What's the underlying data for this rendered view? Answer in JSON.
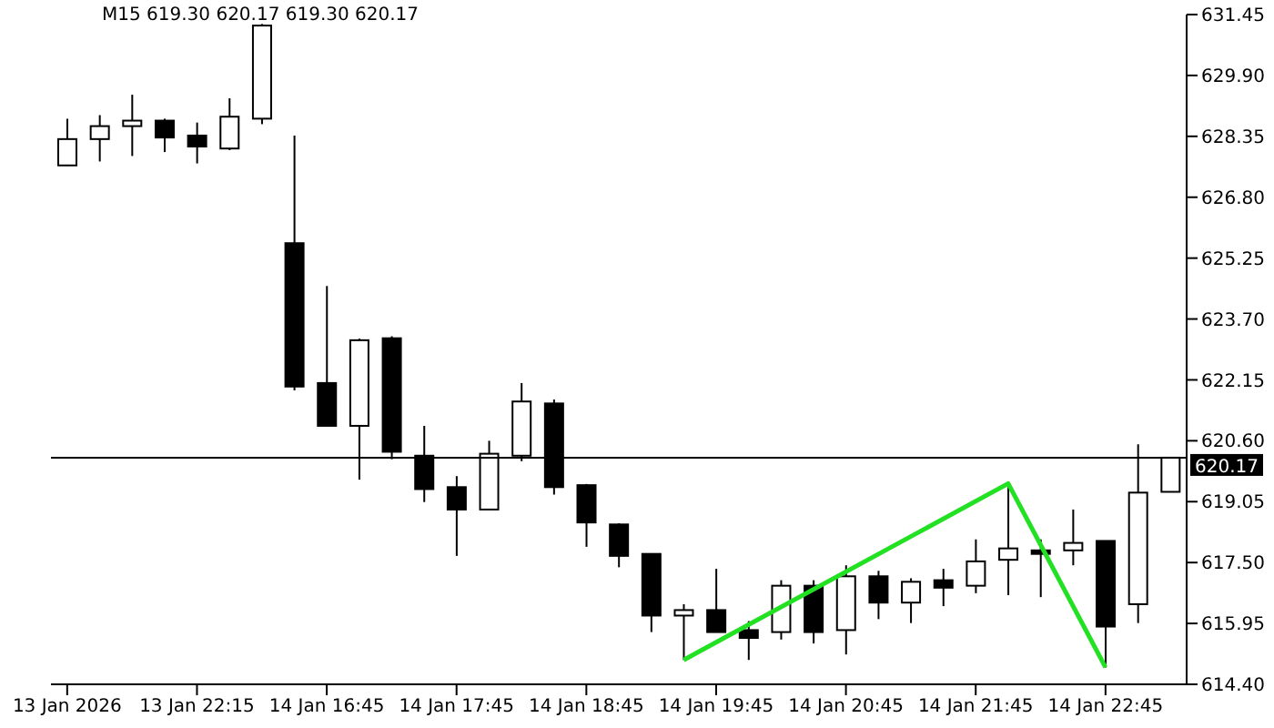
{
  "chart_data": {
    "type": "candlestick",
    "title": "M15  619.30 620.17 619.30 620.17",
    "categories": [
      "13 Jan 2026",
      null,
      null,
      null,
      "13 Jan 22:15",
      null,
      null,
      null,
      "14 Jan 16:45",
      null,
      null,
      null,
      "14 Jan 17:45",
      null,
      null,
      null,
      "14 Jan 18:45",
      null,
      null,
      null,
      "14 Jan 19:45",
      null,
      null,
      null,
      "14 Jan 20:45",
      null,
      null,
      null,
      "14 Jan 21:45",
      null,
      null,
      null,
      "14 Jan 22:45",
      null,
      null
    ],
    "ohlc": [
      [
        627.61,
        628.8,
        627.6,
        628.28
      ],
      [
        628.28,
        628.89,
        627.71,
        628.61
      ],
      [
        628.61,
        629.41,
        627.85,
        628.75
      ],
      [
        628.75,
        628.8,
        627.95,
        628.32
      ],
      [
        628.37,
        628.7,
        627.66,
        628.09
      ],
      [
        628.04,
        629.32,
        628.0,
        628.85
      ],
      [
        628.8,
        631.21,
        628.66,
        631.17
      ],
      [
        625.63,
        628.37,
        621.88,
        621.98
      ],
      [
        622.07,
        624.54,
        620.98,
        620.98
      ],
      [
        620.98,
        623.2,
        619.61,
        623.16
      ],
      [
        623.21,
        623.26,
        620.13,
        620.32
      ],
      [
        620.22,
        620.98,
        619.04,
        619.37
      ],
      [
        619.42,
        619.7,
        617.67,
        618.85
      ],
      [
        618.85,
        620.6,
        618.85,
        620.27
      ],
      [
        620.22,
        622.07,
        620.08,
        621.6
      ],
      [
        621.55,
        621.65,
        619.23,
        619.42
      ],
      [
        619.47,
        619.5,
        617.9,
        618.52
      ],
      [
        618.47,
        618.5,
        617.38,
        617.67
      ],
      [
        617.72,
        617.72,
        615.73,
        616.15
      ],
      [
        616.15,
        616.44,
        615.02,
        616.29
      ],
      [
        616.29,
        617.34,
        615.73,
        615.73
      ],
      [
        615.78,
        616.01,
        615.02,
        615.58
      ],
      [
        615.73,
        617.05,
        615.54,
        616.91
      ],
      [
        616.91,
        617.05,
        615.44,
        615.73
      ],
      [
        615.78,
        617.43,
        615.16,
        617.15
      ],
      [
        617.15,
        617.29,
        616.06,
        616.48
      ],
      [
        616.48,
        617.1,
        615.96,
        617.01
      ],
      [
        617.05,
        617.34,
        616.39,
        616.86
      ],
      [
        616.91,
        618.09,
        616.72,
        617.53
      ],
      [
        617.57,
        619.51,
        616.67,
        617.86
      ],
      [
        617.81,
        618.09,
        616.62,
        617.72
      ],
      [
        617.81,
        618.85,
        617.43,
        618.0
      ],
      [
        618.05,
        618.05,
        614.83,
        615.87
      ],
      [
        616.44,
        620.51,
        615.96,
        619.28
      ],
      [
        619.3,
        620.17,
        619.3,
        620.17
      ]
    ],
    "series": [
      {
        "type": "line",
        "color": "#22e022",
        "values": [
          null,
          null,
          null,
          null,
          null,
          null,
          null,
          null,
          null,
          null,
          null,
          null,
          null,
          null,
          null,
          null,
          null,
          null,
          null,
          615.02,
          null,
          null,
          null,
          null,
          null,
          null,
          null,
          null,
          null,
          619.51,
          null,
          null,
          614.83,
          null,
          null
        ]
      }
    ],
    "ylim": [
      614.4,
      631.45
    ],
    "yticks": [
      {
        "value": 614.4,
        "label": "614.40"
      },
      615.95,
      {
        "value": 617.5,
        "label": "617.50"
      },
      619.05,
      {
        "value": 620.6,
        "label": "620.60"
      },
      622.15,
      {
        "value": 623.7,
        "label": "623.70"
      },
      625.25,
      {
        "value": 626.8,
        "label": "626.80"
      },
      628.35,
      {
        "value": 629.9,
        "label": "629.90"
      },
      631.45
    ],
    "ref_lines": [
      {
        "axis": "y",
        "value": 620.17,
        "label": "620.17",
        "color": "#000000"
      }
    ]
  }
}
